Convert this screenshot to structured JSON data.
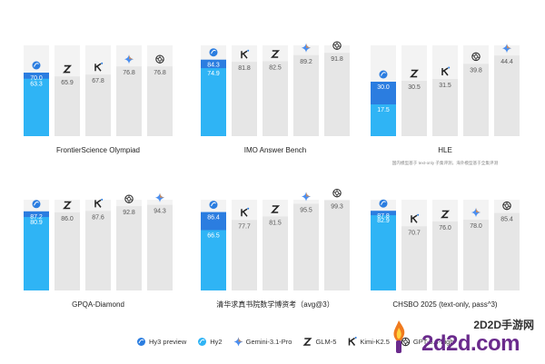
{
  "chart_data": [
    {
      "type": "bar",
      "title": "FrontierScience Olympiad",
      "note": "",
      "ylim": [
        0,
        100
      ],
      "models": [
        "hy3-hy2",
        "glm-5",
        "kimi-k2.5",
        "gemini-3.1-pro",
        "gpt"
      ],
      "values": [
        {
          "hy3": 70.0,
          "hy2": 63.3
        },
        {
          "value": 65.9
        },
        {
          "value": 67.8
        },
        {
          "value": 76.8
        },
        {
          "value": 76.8
        }
      ],
      "labels": [
        "70.0 / 63.3",
        "65.9",
        "67.8",
        "76.8",
        "76.8"
      ]
    },
    {
      "type": "bar",
      "title": "IMO Answer Bench",
      "note": "",
      "ylim": [
        0,
        100
      ],
      "models": [
        "hy3-hy2",
        "kimi-k2.5",
        "glm-5",
        "gemini-3.1-pro",
        "gpt"
      ],
      "values": [
        {
          "hy3": 84.3,
          "hy2": 74.9
        },
        {
          "value": 81.8
        },
        {
          "value": 82.5
        },
        {
          "value": 89.2
        },
        {
          "value": 91.8
        }
      ]
    },
    {
      "type": "bar",
      "title": "HLE",
      "note": "国内模型基于 text-only 子集评测，海外模型基于全集评测",
      "ylim": [
        0,
        50
      ],
      "models": [
        "hy3-hy2",
        "glm-5",
        "kimi-k2.5",
        "gpt",
        "gemini-3.1-pro"
      ],
      "values": [
        {
          "hy3": 30.0,
          "hy2": 17.5
        },
        {
          "value": 30.5
        },
        {
          "value": 31.5
        },
        {
          "value": 39.8
        },
        {
          "value": 44.4
        }
      ]
    },
    {
      "type": "bar",
      "title": "GPQA-Diamond",
      "note": "",
      "ylim": [
        0,
        100
      ],
      "models": [
        "hy3-hy2",
        "glm-5",
        "kimi-k2.5",
        "gpt",
        "gemini-3.1-pro"
      ],
      "values": [
        {
          "hy3": 87.2,
          "hy2": 80.9
        },
        {
          "value": 86.0
        },
        {
          "value": 87.6
        },
        {
          "value": 92.8
        },
        {
          "value": 94.3
        }
      ]
    },
    {
      "type": "bar",
      "title": "清华求真书院数学博资考（avg@3）",
      "note": "",
      "ylim": [
        0,
        100
      ],
      "models": [
        "hy3-hy2",
        "kimi-k2.5",
        "glm-5",
        "gemini-3.1-pro",
        "gpt"
      ],
      "values": [
        {
          "hy3": 86.4,
          "hy2": 66.5
        },
        {
          "value": 77.7
        },
        {
          "value": 81.5
        },
        {
          "value": 95.5
        },
        {
          "value": 99.3
        }
      ]
    },
    {
      "type": "bar",
      "title": "CHSBO 2025 (text-only, pass^3)",
      "note": "",
      "ylim": [
        0,
        100
      ],
      "models": [
        "hy3-hy2",
        "kimi-k2.5",
        "glm-5",
        "gemini-3.1-pro",
        "gpt"
      ],
      "values": [
        {
          "hy3": 87.8,
          "hy2": 82.9
        },
        {
          "value": 70.7
        },
        {
          "value": 76.0
        },
        {
          "value": 78.0
        },
        {
          "value": 85.4
        }
      ]
    }
  ],
  "legend": [
    {
      "name": "Hy3 preview",
      "icon": "hy3-dot"
    },
    {
      "name": "Hy2",
      "icon": "hy2-dot"
    },
    {
      "name": "Gemini-3.1-Pro",
      "icon": "gemini-star"
    },
    {
      "name": "GLM-5",
      "icon": "glm-z"
    },
    {
      "name": "Kimi-K2.5",
      "icon": "kimi-k"
    },
    {
      "name": "GPT-5.4-high",
      "icon": "openai-knot"
    }
  ],
  "colors": {
    "hy3": "#2b7de0",
    "hy2": "#2fb4f5",
    "other": "#e8e8e8",
    "text_on_blue": "#ffffff",
    "text_on_gray": "#555555"
  },
  "watermark": {
    "top": "2D2D手游网",
    "bottom": "2d2d.com"
  }
}
